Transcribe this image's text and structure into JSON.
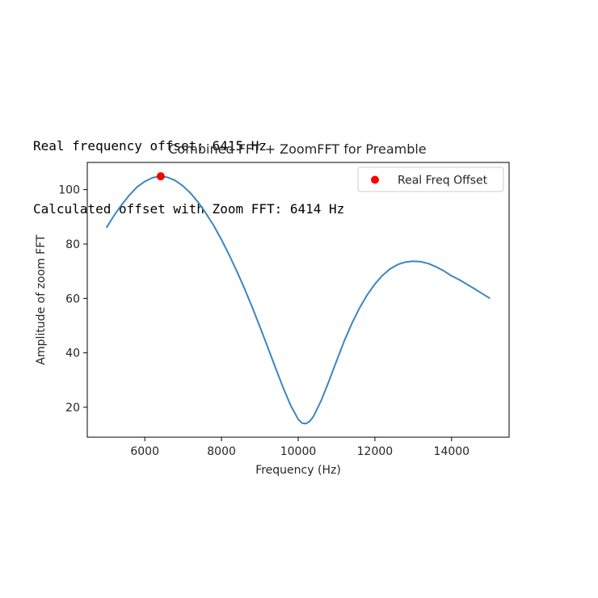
{
  "output_lines": [
    "Real frequency offset: 6415 Hz",
    "Calculated offset with Zoom FFT: 6414 Hz"
  ],
  "colors": {
    "line": "#3b86c1",
    "marker": "#ff0000",
    "axes": "#000000",
    "text": "#262626"
  },
  "chart_data": {
    "type": "line",
    "title": "Combined FFT + ZoomFFT for Preamble",
    "xlabel": "Frequency (Hz)",
    "ylabel": "Amplitude of zoom FFT",
    "xlim": [
      4500,
      15500
    ],
    "ylim": [
      9,
      110
    ],
    "xticks": [
      6000,
      8000,
      10000,
      12000,
      14000
    ],
    "yticks": [
      20,
      40,
      60,
      80,
      100
    ],
    "grid": false,
    "legend_position": "top-right",
    "series": [
      {
        "x": [
          5000,
          5200,
          5400,
          5600,
          5800,
          6000,
          6200,
          6400,
          6600,
          6800,
          7000,
          7200,
          7400,
          7600,
          7800,
          8000,
          8200,
          8400,
          8600,
          8800,
          9000,
          9200,
          9400,
          9600,
          9800,
          10000,
          10100,
          10200,
          10300,
          10400,
          10600,
          10800,
          11000,
          11200,
          11400,
          11600,
          11800,
          12000,
          12200,
          12400,
          12600,
          12800,
          13000,
          13200,
          13400,
          13600,
          13800,
          14000,
          14200,
          14400,
          14600,
          14800,
          15000
        ],
        "y": [
          86,
          90.5,
          94.5,
          98,
          101,
          103,
          104.4,
          104.9,
          104.5,
          103.3,
          101.3,
          98.6,
          95.2,
          91.2,
          86.7,
          81.6,
          76,
          70,
          63.6,
          56.8,
          49.7,
          42.3,
          34.8,
          27.5,
          20.8,
          15.6,
          14.2,
          14,
          14.8,
          16.7,
          22.5,
          29.6,
          37,
          44.3,
          50.8,
          56.5,
          61.3,
          65.3,
          68.5,
          70.9,
          72.5,
          73.4,
          73.7,
          73.5,
          72.8,
          71.6,
          70.1,
          68.3,
          66.9,
          65.2,
          63.5,
          61.8,
          60
        ]
      },
      {
        "name": "Real Freq Offset",
        "type": "scatter",
        "x": [
          6415
        ],
        "y": [
          104.9
        ]
      }
    ]
  }
}
